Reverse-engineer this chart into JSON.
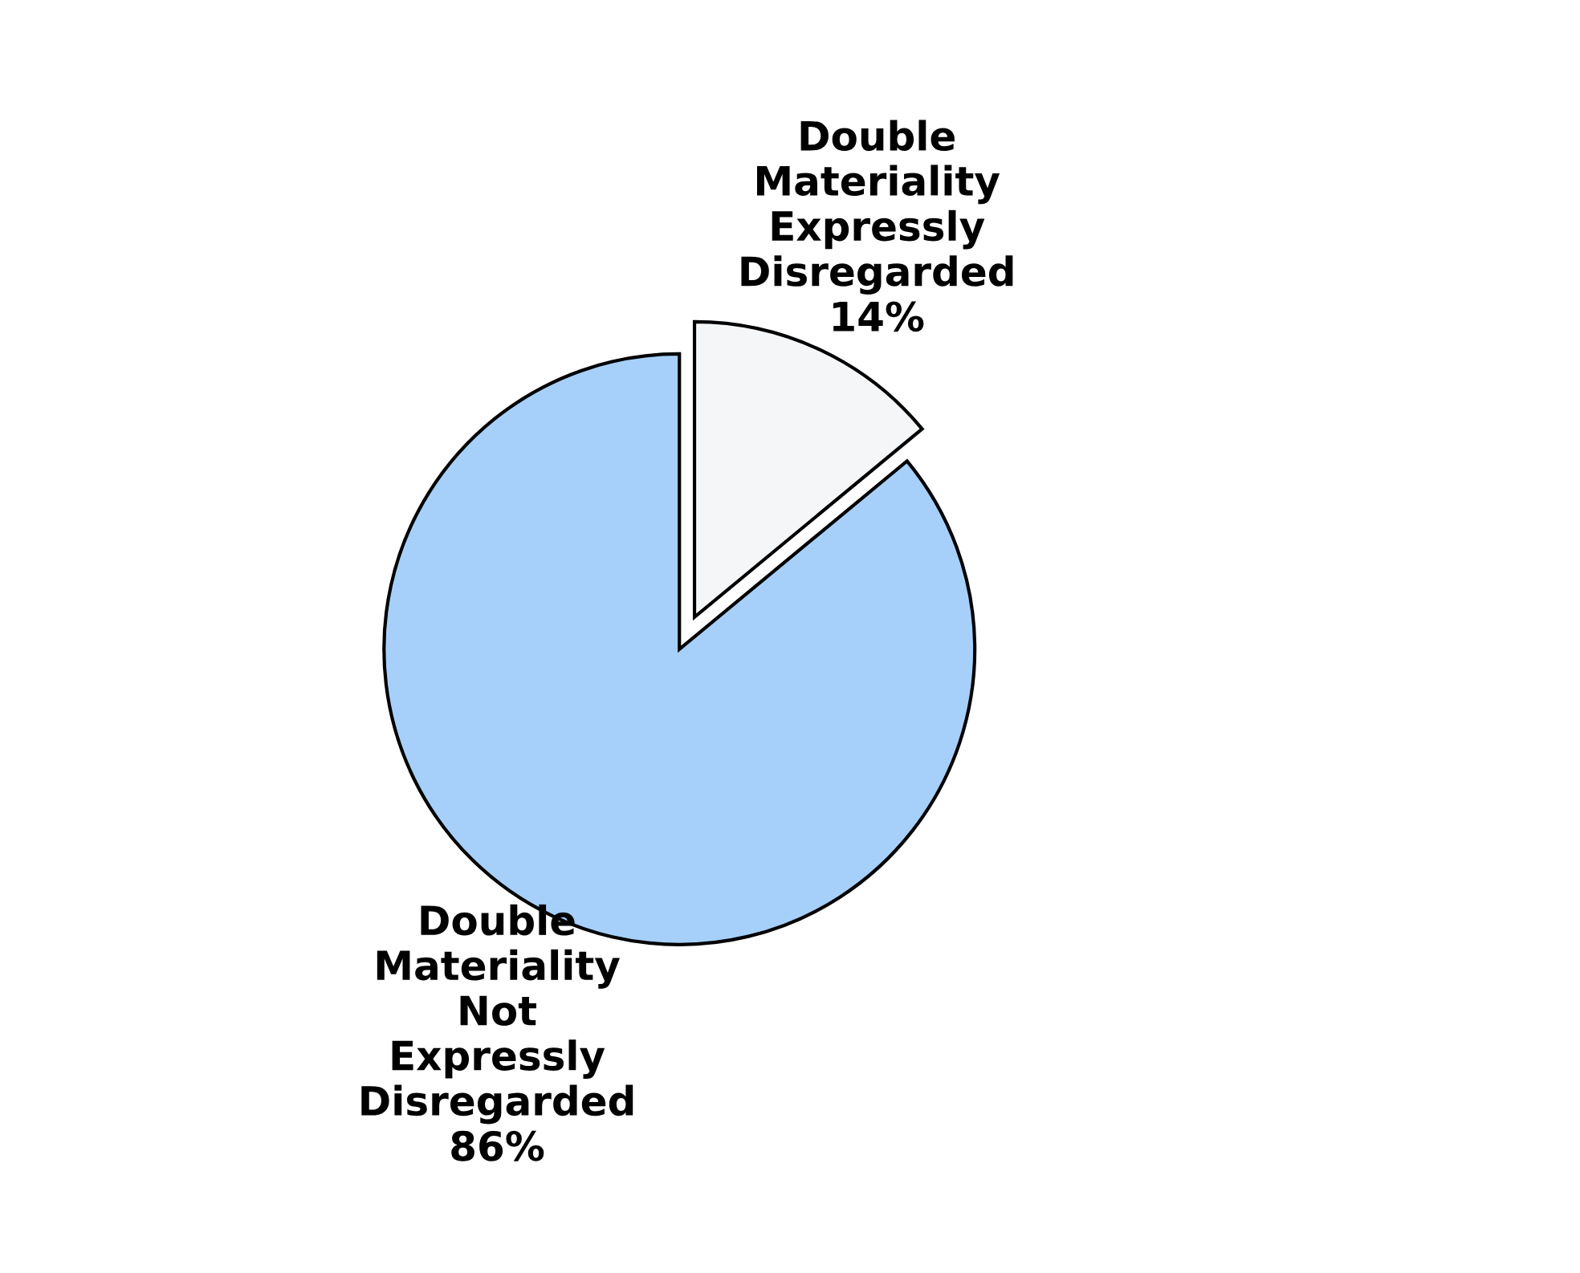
{
  "chart_data": {
    "type": "pie",
    "categories": [
      "Double Materiality Expressly Disregarded",
      "Double Materiality Not Expressly Disregarded"
    ],
    "values": [
      14,
      86
    ],
    "value_labels": [
      "14%",
      "86%"
    ],
    "colors": [
      "#f4f6f8",
      "#a6d0fa"
    ],
    "legend": false
  }
}
